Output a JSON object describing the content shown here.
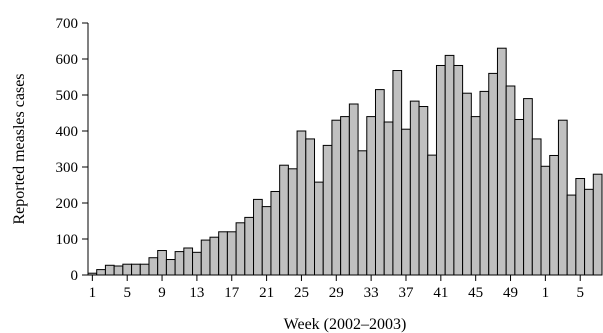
{
  "chart_data": {
    "type": "bar",
    "xlabel": "Week (2002–2003)",
    "ylabel": "Reported measles cases",
    "ylim": [
      0,
      700
    ],
    "yticks": [
      0,
      100,
      200,
      300,
      400,
      500,
      600,
      700
    ],
    "bar_color": "#c0c0c0",
    "grid": false,
    "categories": [
      "1",
      "2",
      "3",
      "4",
      "5",
      "6",
      "7",
      "8",
      "9",
      "10",
      "11",
      "12",
      "13",
      "14",
      "15",
      "16",
      "17",
      "18",
      "19",
      "20",
      "21",
      "22",
      "23",
      "24",
      "25",
      "26",
      "27",
      "28",
      "29",
      "30",
      "31",
      "32",
      "33",
      "34",
      "35",
      "36",
      "37",
      "38",
      "39",
      "40",
      "41",
      "42",
      "43",
      "44",
      "45",
      "46",
      "47",
      "48",
      "49",
      "50",
      "51",
      "52",
      "1",
      "2",
      "3",
      "4",
      "5",
      "6",
      "7"
    ],
    "xtick_labels": [
      "1",
      "5",
      "9",
      "13",
      "17",
      "21",
      "25",
      "29",
      "33",
      "37",
      "41",
      "45",
      "49",
      "1",
      "5"
    ],
    "xtick_categories": [
      1,
      5,
      9,
      13,
      17,
      21,
      25,
      29,
      33,
      37,
      41,
      45,
      49,
      53,
      57
    ],
    "values": [
      5,
      15,
      27,
      25,
      30,
      30,
      30,
      48,
      68,
      43,
      65,
      75,
      63,
      97,
      105,
      120,
      120,
      145,
      160,
      210,
      190,
      232,
      305,
      295,
      400,
      378,
      258,
      360,
      430,
      440,
      475,
      345,
      440,
      515,
      425,
      568,
      405,
      483,
      468,
      333,
      582,
      610,
      582,
      505,
      440,
      510,
      560,
      630,
      525,
      432,
      490,
      378,
      302,
      332,
      430,
      222,
      268,
      238,
      280
    ]
  }
}
